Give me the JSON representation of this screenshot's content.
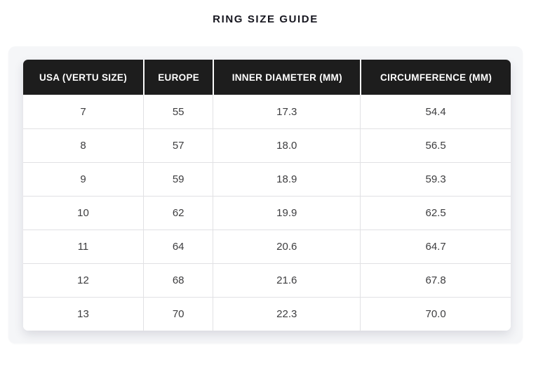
{
  "page": {
    "title": "RING SIZE GUIDE"
  },
  "table": {
    "columns": [
      "USA (VERTU SIZE)",
      "EUROPE",
      "INNER DIAMETER (MM)",
      "CIRCUMFERENCE (MM)"
    ],
    "rows": [
      [
        "7",
        "55",
        "17.3",
        "54.4"
      ],
      [
        "8",
        "57",
        "18.0",
        "56.5"
      ],
      [
        "9",
        "59",
        "18.9",
        "59.3"
      ],
      [
        "10",
        "62",
        "19.9",
        "62.5"
      ],
      [
        "11",
        "64",
        "20.6",
        "64.7"
      ],
      [
        "12",
        "68",
        "21.6",
        "67.8"
      ],
      [
        "13",
        "70",
        "22.3",
        "70.0"
      ]
    ]
  },
  "chart_data": {
    "type": "table",
    "title": "RING SIZE GUIDE",
    "columns": [
      "USA (VERTU SIZE)",
      "EUROPE",
      "INNER DIAMETER (MM)",
      "CIRCUMFERENCE (MM)"
    ],
    "rows": [
      [
        7,
        55,
        17.3,
        54.4
      ],
      [
        8,
        57,
        18.0,
        56.5
      ],
      [
        9,
        59,
        18.9,
        59.3
      ],
      [
        10,
        62,
        19.9,
        62.5
      ],
      [
        11,
        64,
        20.6,
        64.7
      ],
      [
        12,
        68,
        21.6,
        67.8
      ],
      [
        13,
        70,
        22.3,
        70.0
      ]
    ]
  },
  "colors": {
    "header_bg": "#1d1d1d",
    "header_text": "#ffffff",
    "card_bg": "#f5f6f8",
    "cell_border": "#e1e1e4",
    "body_text": "#3d3d3f",
    "title_text": "#16161f"
  }
}
